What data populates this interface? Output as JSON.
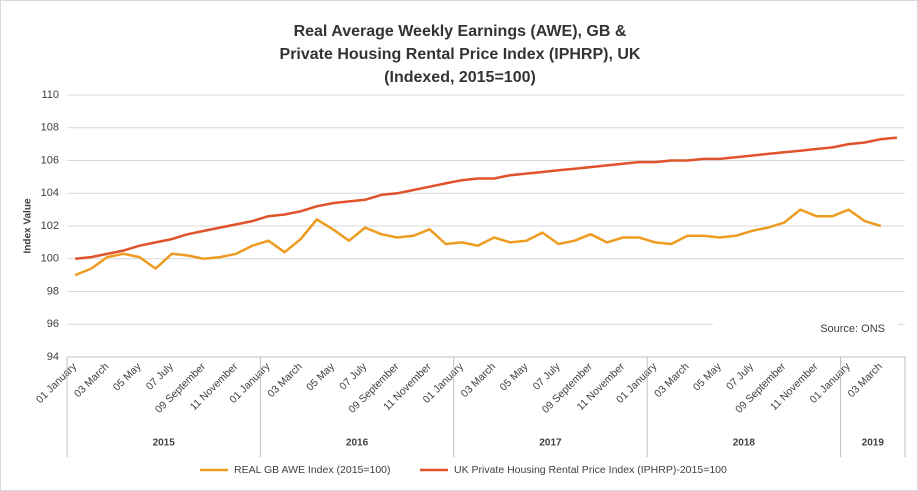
{
  "chart_data": {
    "type": "line",
    "title": [
      "Real Average Weekly Earnings (AWE), GB &",
      "Private Housing Rental Price Index (IPHRP), UK",
      "(Indexed, 2015=100)"
    ],
    "y_label": "Index Value",
    "annotation": "Source: ONS",
    "categories": [
      "01 January",
      null,
      "03 March",
      null,
      "05 May",
      null,
      "07 July",
      null,
      "09 September",
      null,
      "11 November",
      null,
      "01 January",
      null,
      "03 March",
      null,
      "05 May",
      null,
      "07 July",
      null,
      "09 September",
      null,
      "11 November",
      null,
      "01 January",
      null,
      "03 March",
      null,
      "05 May",
      null,
      "07 July",
      null,
      "09 September",
      null,
      "11 November",
      null,
      "01 January",
      null,
      "03 March",
      null,
      "05 May",
      null,
      "07 July",
      null,
      "09 September",
      null,
      "11 November",
      null,
      "01 January",
      null,
      "03 March",
      null
    ],
    "year_groups": [
      {
        "label": "2015",
        "months": 12
      },
      {
        "label": "2016",
        "months": 12
      },
      {
        "label": "2017",
        "months": 12
      },
      {
        "label": "2018",
        "months": 12
      },
      {
        "label": "2019",
        "months": 4
      }
    ],
    "series": [
      {
        "name": "REAL GB AWE Index (2015=100)",
        "color": "#ed9c1f",
        "values": [
          99.0,
          99.4,
          100.1,
          100.3,
          100.1,
          99.4,
          100.3,
          100.2,
          100.0,
          100.1,
          100.3,
          100.8,
          101.1,
          100.4,
          101.2,
          102.4,
          101.8,
          101.1,
          101.9,
          101.5,
          101.3,
          101.4,
          101.8,
          100.9,
          101.0,
          100.8,
          101.3,
          101.0,
          101.1,
          101.6,
          100.9,
          101.1,
          101.5,
          101.0,
          101.3,
          101.3,
          101.0,
          100.9,
          101.4,
          101.4,
          101.3,
          101.4,
          101.7,
          101.9,
          102.2,
          103.0,
          102.6,
          102.6,
          103.0,
          102.3,
          102.0,
          null
        ]
      },
      {
        "name": "UK Private Housing Rental Price Index (IPHRP)-2015=100",
        "color": "#e0522a",
        "values": [
          100.0,
          100.1,
          100.3,
          100.5,
          100.8,
          101.0,
          101.2,
          101.5,
          101.7,
          101.9,
          102.1,
          102.3,
          102.6,
          102.7,
          102.9,
          103.2,
          103.4,
          103.5,
          103.6,
          103.9,
          104.0,
          104.2,
          104.4,
          104.6,
          104.8,
          104.9,
          104.9,
          105.1,
          105.2,
          105.3,
          105.4,
          105.5,
          105.6,
          105.7,
          105.8,
          105.9,
          105.9,
          106.0,
          106.0,
          106.1,
          106.1,
          106.2,
          106.3,
          106.4,
          106.5,
          106.6,
          106.7,
          106.8,
          107.0,
          107.1,
          107.3,
          107.4
        ]
      }
    ],
    "ylim": [
      94,
      110
    ],
    "yticks": [
      94,
      96,
      98,
      100,
      102,
      104,
      106,
      108,
      110
    ],
    "grid": true
  }
}
